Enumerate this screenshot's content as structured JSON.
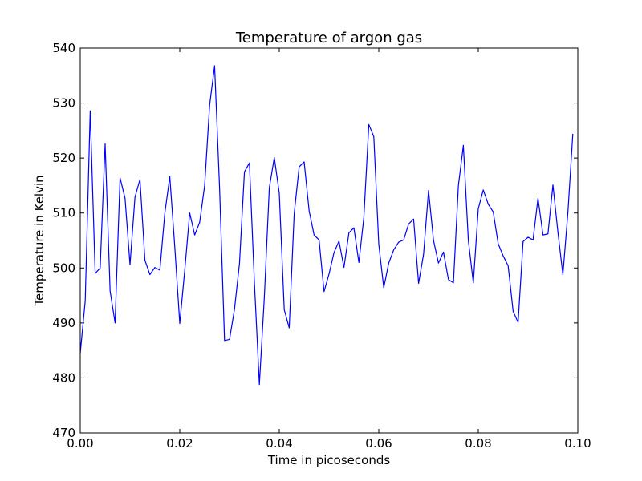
{
  "chart_data": {
    "type": "line",
    "title": "Temperature of argon gas",
    "xlabel": "Time in picoseconds",
    "ylabel": "Temperature in Kelvin",
    "xlim": [
      0.0,
      0.1
    ],
    "ylim": [
      470,
      540
    ],
    "xticks": [
      0.0,
      0.02,
      0.04,
      0.06,
      0.08,
      0.1
    ],
    "xtick_labels": [
      "0.00",
      "0.02",
      "0.04",
      "0.06",
      "0.08",
      "0.10"
    ],
    "yticks": [
      470,
      480,
      490,
      500,
      510,
      520,
      530,
      540
    ],
    "ytick_labels": [
      "470",
      "480",
      "490",
      "500",
      "510",
      "520",
      "530",
      "540"
    ],
    "grid": false,
    "line_color": "#0000ff",
    "series": [
      {
        "x": [
          0.0,
          0.001,
          0.002,
          0.003,
          0.004,
          0.005,
          0.006,
          0.007,
          0.008,
          0.009,
          0.01,
          0.011,
          0.012,
          0.013,
          0.014,
          0.015,
          0.016,
          0.017,
          0.018,
          0.019,
          0.02,
          0.021,
          0.022,
          0.023,
          0.024,
          0.025,
          0.026,
          0.027,
          0.028,
          0.029,
          0.03,
          0.031,
          0.032,
          0.033,
          0.034,
          0.035,
          0.036,
          0.037,
          0.038,
          0.039,
          0.04,
          0.041,
          0.042,
          0.043,
          0.044,
          0.045,
          0.046,
          0.047,
          0.048,
          0.049,
          0.05,
          0.051,
          0.052,
          0.053,
          0.054,
          0.055,
          0.056,
          0.057,
          0.058,
          0.059,
          0.06,
          0.061,
          0.062,
          0.063,
          0.064,
          0.065,
          0.066,
          0.067,
          0.068,
          0.069,
          0.07,
          0.071,
          0.072,
          0.073,
          0.074,
          0.075,
          0.076,
          0.077,
          0.078,
          0.079,
          0.08,
          0.081,
          0.082,
          0.083,
          0.084,
          0.085,
          0.086,
          0.087,
          0.088,
          0.089,
          0.09,
          0.091,
          0.092,
          0.093,
          0.094,
          0.095,
          0.096,
          0.097,
          0.098,
          0.099
        ],
        "values": [
          484.5,
          494.0,
          528.6,
          499.0,
          500.0,
          522.6,
          495.8,
          490.0,
          516.4,
          512.7,
          500.6,
          512.9,
          516.1,
          501.4,
          498.8,
          500.1,
          499.6,
          510.0,
          516.6,
          503.8,
          489.9,
          499.6,
          510.0,
          506.0,
          508.3,
          515.0,
          529.6,
          536.8,
          514.6,
          486.8,
          487.0,
          492.5,
          500.8,
          517.5,
          519.1,
          497.4,
          478.8,
          494.7,
          514.6,
          520.1,
          513.6,
          492.4,
          489.1,
          509.9,
          518.4,
          519.3,
          510.4,
          506.0,
          505.1,
          495.7,
          498.9,
          502.8,
          504.9,
          500.1,
          506.4,
          507.3,
          501.0,
          509.2,
          526.1,
          523.9,
          504.3,
          496.4,
          500.9,
          503.3,
          504.7,
          505.1,
          508.0,
          508.9,
          497.2,
          502.5,
          514.1,
          505.0,
          500.9,
          502.9,
          497.9,
          497.3,
          515.0,
          522.3,
          505.0,
          497.3,
          510.8,
          514.2,
          511.6,
          510.2,
          504.4,
          502.2,
          500.4,
          492.1,
          490.1,
          504.8,
          505.6,
          505.1,
          512.7,
          506.0,
          506.2,
          515.1,
          506.5,
          498.8,
          510.0,
          524.4
        ]
      }
    ]
  }
}
